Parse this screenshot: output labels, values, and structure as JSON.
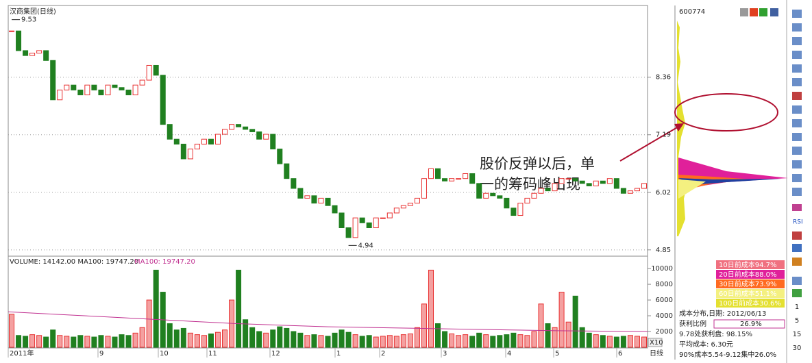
{
  "window": {
    "title": "汉商集团(日线)",
    "code": "600774",
    "period_tab": "日线",
    "scale_tag": "X10"
  },
  "chart_data": {
    "type": "candlestick",
    "closes": [
      9.3,
      8.9,
      8.8,
      8.85,
      8.9,
      8.7,
      7.9,
      8.1,
      8.2,
      8.1,
      8.0,
      8.2,
      8.1,
      8.0,
      8.2,
      8.15,
      8.1,
      8.0,
      8.2,
      8.3,
      8.6,
      8.4,
      7.4,
      7.1,
      7.0,
      6.7,
      6.9,
      7.0,
      7.1,
      7.0,
      7.2,
      7.3,
      7.4,
      7.35,
      7.3,
      7.25,
      7.1,
      7.2,
      6.9,
      6.6,
      6.3,
      6.1,
      5.9,
      5.95,
      5.8,
      5.9,
      5.75,
      5.6,
      5.3,
      5.1,
      5.5,
      5.4,
      5.3,
      5.5,
      5.5,
      5.6,
      5.7,
      5.75,
      5.8,
      5.9,
      6.3,
      6.5,
      6.3,
      6.25,
      6.3,
      6.3,
      6.4,
      6.2,
      5.9,
      6.0,
      5.95,
      5.9,
      5.7,
      5.55,
      5.8,
      5.9,
      6.0,
      6.1,
      6.05,
      6.2,
      6.3,
      6.3,
      6.25,
      6.2,
      6.15,
      6.25,
      6.2,
      6.3,
      6.1,
      6.0,
      6.05,
      6.1,
      6.2
    ],
    "ylim": [
      4.75,
      9.79
    ],
    "yticks": [
      8.36,
      7.19,
      6.02,
      4.85
    ],
    "grid": true,
    "up_color": "#e83030",
    "down_color": "#208020",
    "high_mark": 9.53,
    "low_mark": 4.94,
    "x_labels": [
      "2011年",
      "9",
      "10",
      "11",
      "12",
      "1",
      "2",
      "3",
      "4",
      "5",
      "6"
    ],
    "volume": {
      "header": "VOLUME: 14142.00 MA100: 19747.20",
      "ma_label": "MA100: 19747.20",
      "values": [
        4200,
        1500,
        1400,
        1600,
        1500,
        1300,
        2200,
        1500,
        1400,
        1300,
        1500,
        1400,
        1300,
        1500,
        1400,
        1300,
        1600,
        1500,
        1800,
        2500,
        6000,
        9800,
        7000,
        3000,
        2200,
        2400,
        1800,
        1600,
        1500,
        1700,
        1900,
        2200,
        6000,
        9800,
        3500,
        2500,
        2000,
        1800,
        2200,
        2600,
        2400,
        2000,
        1800,
        1500,
        1600,
        1500,
        1400,
        1800,
        2200,
        1900,
        1600,
        1400,
        1500,
        1300,
        1400,
        1500,
        1400,
        1600,
        1700,
        2500,
        5500,
        9800,
        3000,
        2000,
        1700,
        1500,
        1600,
        1400,
        1800,
        1600,
        1400,
        1500,
        1600,
        1800,
        1600,
        1500,
        2000,
        5500,
        3000,
        2500,
        7000,
        3200,
        6500,
        2500,
        1800,
        1600,
        1500,
        1400,
        1300,
        1400,
        1500,
        1400,
        1300
      ],
      "ma": [
        4500,
        4200,
        3900,
        3600,
        3300,
        3000,
        2800,
        2600,
        2500,
        2400,
        2300,
        2200,
        2100,
        2050,
        2000
      ],
      "ylim": [
        0,
        11400
      ],
      "yticks": [
        2000,
        4000,
        6000,
        8000,
        10000
      ]
    }
  },
  "annotation": [
    "股价反弹以后，单",
    "一的筹码峰出现"
  ],
  "chip_panel": {
    "legend": [
      "10日前成本94.7%",
      "20日前成本88.0%",
      "30日前成本73.9%",
      "60日前成本51.1%",
      "100日前成本30.6%"
    ],
    "legend_colors": [
      "#f07080",
      "#e0209a",
      "#ff6a20",
      "#f4f080",
      "#e4e030"
    ],
    "info": [
      "成本分布,日期: 2012/06/13",
      "获利比例",
      "26.9%",
      "9.78处获利盘: 98.15%",
      "平均成本: 6.30元",
      "90%成本5.54-9.12集中26.0%"
    ]
  },
  "toolbar": {
    "rsi": "RSI",
    "periods": [
      "1",
      "5",
      "15",
      "30"
    ]
  }
}
